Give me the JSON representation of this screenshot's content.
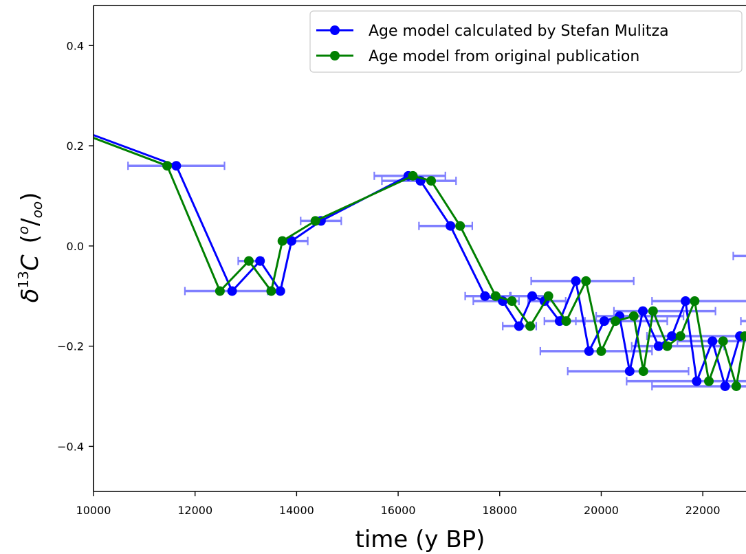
{
  "chart_data": {
    "type": "line",
    "xlabel": "time (y BP)",
    "ylabel": {
      "base": "δ",
      "sup": "13",
      "main": "C",
      "paren_open": "(",
      "unit_sup": "o",
      "slash": "/",
      "unit_sub": "oo",
      "paren_close": ")"
    },
    "xlim": [
      10000,
      23000
    ],
    "ylim": [
      -0.49,
      0.48
    ],
    "x_ticks": [
      10000,
      12000,
      14000,
      16000,
      18000,
      20000,
      22000
    ],
    "y_ticks": [
      -0.4,
      -0.2,
      0.0,
      0.2,
      0.4
    ],
    "y_tick_labels": [
      "−0.4",
      "−0.2",
      "0.0",
      "0.2",
      "0.4"
    ],
    "legend_position": "top-right",
    "colors": {
      "blue": "#0000ff",
      "green": "#008000",
      "errorbar": "#7f7fff"
    },
    "series": [
      {
        "name": "Age model calculated by Stefan Mulitza",
        "color": "#0000ff",
        "x": [
          9500,
          11630,
          12730,
          13280,
          13680,
          13900,
          14480,
          16200,
          16440,
          17030,
          17710,
          18060,
          18380,
          18640,
          18880,
          19180,
          19500,
          19760,
          20060,
          20360,
          20560,
          20820,
          21130,
          21390,
          21660,
          21880,
          22190,
          22440,
          22730,
          23050
        ],
        "y": [
          0.24,
          0.16,
          -0.09,
          -0.03,
          -0.09,
          0.01,
          0.05,
          0.14,
          0.13,
          0.04,
          -0.1,
          -0.11,
          -0.16,
          -0.1,
          -0.11,
          -0.15,
          -0.07,
          -0.21,
          -0.15,
          -0.14,
          -0.25,
          -0.13,
          -0.2,
          -0.18,
          -0.11,
          -0.27,
          -0.19,
          -0.28,
          -0.18,
          -0.17
        ]
      },
      {
        "name": "Age model from original publication",
        "color": "#008000",
        "x": [
          9500,
          11450,
          12490,
          13060,
          13500,
          13720,
          14370,
          16290,
          16650,
          17220,
          17920,
          18240,
          18600,
          18960,
          19310,
          19700,
          20000,
          20280,
          20640,
          20830,
          21020,
          21300,
          21560,
          21840,
          22120,
          22400,
          22660,
          22830,
          23100
        ],
        "y": [
          0.235,
          0.16,
          -0.09,
          -0.03,
          -0.09,
          0.01,
          0.05,
          0.14,
          0.13,
          0.04,
          -0.1,
          -0.11,
          -0.16,
          -0.1,
          -0.15,
          -0.07,
          -0.21,
          -0.15,
          -0.14,
          -0.25,
          -0.13,
          -0.2,
          -0.18,
          -0.11,
          -0.27,
          -0.19,
          -0.28,
          -0.18,
          -0.17
        ]
      }
    ],
    "error_bars": [
      {
        "y": 0.16,
        "xmin": 10680,
        "xmax": 12580
      },
      {
        "y": -0.09,
        "xmin": 11800,
        "xmax": 13430
      },
      {
        "y": -0.03,
        "xmin": 12850,
        "xmax": 13340
      },
      {
        "y": -0.09,
        "xmin": 13480,
        "xmax": 13720
      },
      {
        "y": 0.01,
        "xmin": 13700,
        "xmax": 14220
      },
      {
        "y": 0.05,
        "xmin": 14080,
        "xmax": 14880
      },
      {
        "y": 0.14,
        "xmin": 15530,
        "xmax": 16930
      },
      {
        "y": 0.13,
        "xmin": 15680,
        "xmax": 17140
      },
      {
        "y": 0.04,
        "xmin": 16410,
        "xmax": 17460
      },
      {
        "y": -0.1,
        "xmin": 17320,
        "xmax": 18220
      },
      {
        "y": -0.11,
        "xmin": 17480,
        "xmax": 18380
      },
      {
        "y": -0.16,
        "xmin": 18060,
        "xmax": 18720
      },
      {
        "y": -0.1,
        "xmin": 18200,
        "xmax": 19000
      },
      {
        "y": -0.11,
        "xmin": 18560,
        "xmax": 19300
      },
      {
        "y": -0.15,
        "xmin": 18880,
        "xmax": 19680
      },
      {
        "y": -0.07,
        "xmin": 18620,
        "xmax": 20640
      },
      {
        "y": -0.21,
        "xmin": 18800,
        "xmax": 21000
      },
      {
        "y": -0.15,
        "xmin": 19500,
        "xmax": 21300
      },
      {
        "y": -0.14,
        "xmin": 19900,
        "xmax": 21620
      },
      {
        "y": -0.25,
        "xmin": 19340,
        "xmax": 21720
      },
      {
        "y": -0.13,
        "xmin": 20250,
        "xmax": 22250
      },
      {
        "y": -0.2,
        "xmin": 20600,
        "xmax": 22420
      },
      {
        "y": -0.18,
        "xmin": 20900,
        "xmax": 22800
      },
      {
        "y": -0.11,
        "xmin": 21000,
        "xmax": 23300
      },
      {
        "y": -0.27,
        "xmin": 20500,
        "xmax": 23300
      },
      {
        "y": -0.19,
        "xmin": 21500,
        "xmax": 23300
      },
      {
        "y": -0.28,
        "xmin": 21000,
        "xmax": 23300
      },
      {
        "y": -0.02,
        "xmin": 22600,
        "xmax": 23300
      },
      {
        "y": -0.15,
        "xmin": 22750,
        "xmax": 23300
      }
    ]
  }
}
